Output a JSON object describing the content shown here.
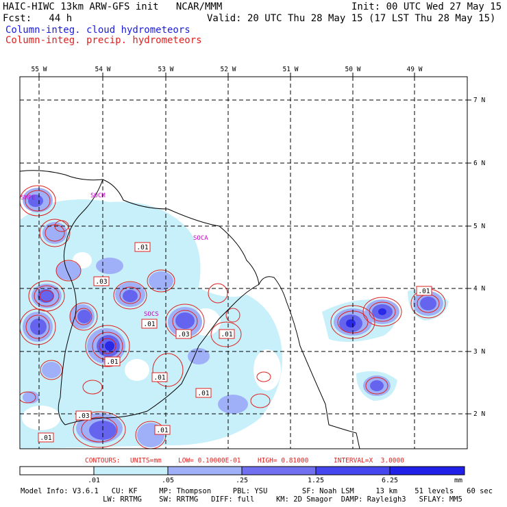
{
  "header": {
    "title": "HAIC-HIWC 13km ARW-GFS init   NCAR/MMM",
    "init": "Init: 00 UTC Wed 27 May 15",
    "fcst": "Fcst:   44 h",
    "valid": "Valid: 20 UTC Thu 28 May 15 (17 LST Thu 28 May 15)",
    "field1": "Column-integ. cloud hydrometeors",
    "field2": "Column-integ. precip. hydrometeors",
    "field1_color": "#1a1adc",
    "field2_color": "#e0201e"
  },
  "map": {
    "lon_labels": [
      "55 W",
      "54 W",
      "53 W",
      "52 W",
      "51 W",
      "50 W",
      "49 W"
    ],
    "lat_labels": [
      "7 N",
      "6 N",
      "5 N",
      "4 N",
      "3 N",
      "2 N"
    ],
    "place_labels": [
      "SMPE",
      "SOCM",
      "SOCA",
      "SOCS"
    ],
    "contour_labels": [
      ".01",
      ".03",
      ".01",
      ".03",
      ".01",
      ".01",
      ".01",
      ".01",
      ".03",
      ".01",
      ".01",
      ".01"
    ],
    "contour_color": "#e0201e",
    "place_color": "#c800c8"
  },
  "contours_info": {
    "label": "CONTOURS:",
    "units": "UNITS=mm",
    "low": "LOW= 0.10000E-01",
    "high": "HIGH= 0.81000",
    "interval": "INTERVAL=X  3.0000"
  },
  "colorbar": {
    "labels": [
      ".01",
      ".05",
      ".25",
      "1.25",
      "6.25"
    ],
    "unit": "mm",
    "colors": [
      "#ffffff",
      "#c8f0fa",
      "#a0b0f8",
      "#7070f0",
      "#4646ee",
      "#2020e8"
    ]
  },
  "model_info": {
    "line1": "Model Info: V3.6.1   CU: KF     MP: Thompson     PBL: YSU        SF: Noah LSM     13 km    51 levels   60 sec",
    "line2": "                   LW: RRTMG    SW: RRTMG   DIFF: full     KM: 2D Smagor  DAMP: Rayleigh3   SFLAY: MM5"
  }
}
